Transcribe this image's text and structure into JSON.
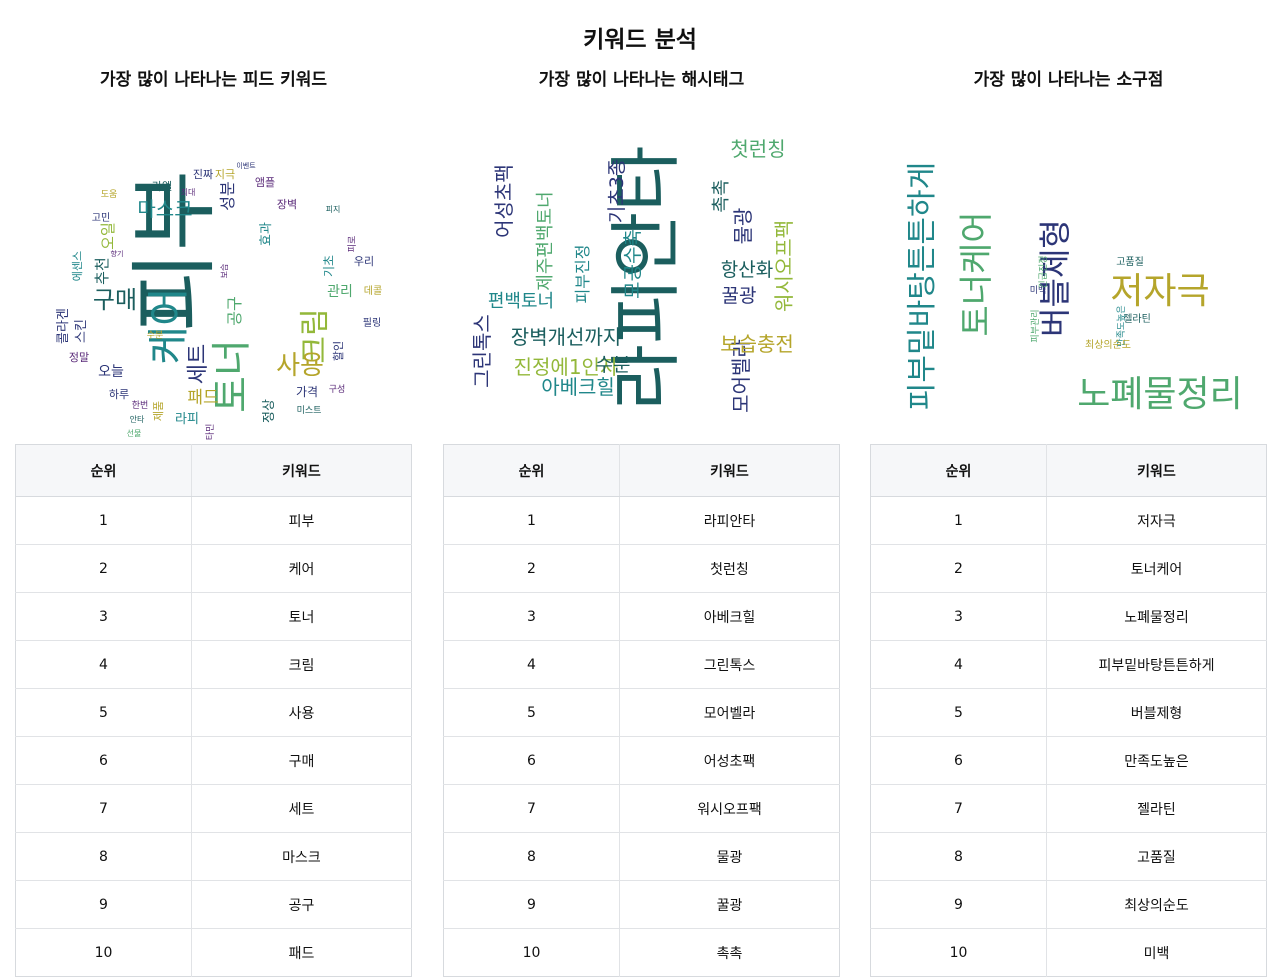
{
  "page_title": "키워드 분석",
  "columns": [
    {
      "title": "가장 많이 나타나는 피드 키워드",
      "rank_header": "순위",
      "keyword_header": "키워드",
      "rows": [
        {
          "rank": "1",
          "keyword": "피부"
        },
        {
          "rank": "2",
          "keyword": "케어"
        },
        {
          "rank": "3",
          "keyword": "토너"
        },
        {
          "rank": "4",
          "keyword": "크림"
        },
        {
          "rank": "5",
          "keyword": "사용"
        },
        {
          "rank": "6",
          "keyword": "구매"
        },
        {
          "rank": "7",
          "keyword": "세트"
        },
        {
          "rank": "8",
          "keyword": "마스크"
        },
        {
          "rank": "9",
          "keyword": "공구"
        },
        {
          "rank": "10",
          "keyword": "패드"
        }
      ]
    },
    {
      "title": "가장 많이 나타나는 해시태그",
      "rank_header": "순위",
      "keyword_header": "키워드",
      "rows": [
        {
          "rank": "1",
          "keyword": "라피안타"
        },
        {
          "rank": "2",
          "keyword": "첫런칭"
        },
        {
          "rank": "3",
          "keyword": "아베크힐"
        },
        {
          "rank": "4",
          "keyword": "그린톡스"
        },
        {
          "rank": "5",
          "keyword": "모어벨라"
        },
        {
          "rank": "6",
          "keyword": "어성초팩"
        },
        {
          "rank": "7",
          "keyword": "워시오프팩"
        },
        {
          "rank": "8",
          "keyword": "물광"
        },
        {
          "rank": "9",
          "keyword": "꿀광"
        },
        {
          "rank": "10",
          "keyword": "촉촉"
        }
      ]
    },
    {
      "title": "가장 많이 나타나는 소구점",
      "rank_header": "순위",
      "keyword_header": "키워드",
      "rows": [
        {
          "rank": "1",
          "keyword": "저자극"
        },
        {
          "rank": "2",
          "keyword": "토너케어"
        },
        {
          "rank": "3",
          "keyword": "노폐물정리"
        },
        {
          "rank": "4",
          "keyword": "피부밑바탕튼튼하게"
        },
        {
          "rank": "5",
          "keyword": "버블제형"
        },
        {
          "rank": "6",
          "keyword": "만족도높은"
        },
        {
          "rank": "7",
          "keyword": "젤라틴"
        },
        {
          "rank": "8",
          "keyword": "고품질"
        },
        {
          "rank": "9",
          "keyword": "최상의순도"
        },
        {
          "rank": "10",
          "keyword": "미백"
        }
      ]
    }
  ],
  "clouds": {
    "feed": [
      "피부",
      "케어",
      "토너",
      "크림",
      "사용",
      "구매",
      "세트",
      "마스크",
      "공구",
      "패드",
      "성분",
      "추천",
      "오일",
      "관리",
      "가격",
      "정상",
      "라피",
      "오늘",
      "스킨",
      "효과",
      "장벽",
      "제품",
      "앰플",
      "라엘",
      "진짜",
      "지극",
      "콜라겐",
      "정말",
      "기초",
      "할인",
      "구성",
      "미스트",
      "필링",
      "데콜",
      "우리",
      "최대",
      "이벤트",
      "도움",
      "고민",
      "에센스",
      "향기",
      "피로",
      "하루",
      "한번",
      "안타",
      "비타민",
      "피지",
      "선물",
      "보습",
      "수분"
    ],
    "hashtag": [
      "라피안타",
      "첫런칭",
      "아베크힐",
      "그린톡스",
      "모어벨라",
      "어성초팩",
      "워시오프팩",
      "물광",
      "꿀광",
      "촉촉",
      "항산화",
      "보습충전",
      "장벽개선까지",
      "진정에1인자",
      "편백토너",
      "모공수축",
      "기초3종",
      "제주편백토너",
      "피부진정",
      "수분"
    ],
    "appeal": [
      "저자극",
      "토너케어",
      "노폐물정리",
      "피부밑바탕튼튼하게",
      "버블제형",
      "만족도높은",
      "젤라틴",
      "고품질",
      "최상의순도",
      "미백",
      "피부관리",
      "긴급진정"
    ]
  },
  "colors": {
    "cloud_dark_teal": "#1b5e5e",
    "cloud_teal": "#20878a",
    "cloud_green": "#4fa86e",
    "cloud_olive": "#b5a52b",
    "cloud_navy": "#2c3577",
    "cloud_purple": "#5a2a79",
    "cloud_yellowgreen": "#93b83a",
    "table_header_bg": "#f6f7f9",
    "border": "#d7dade"
  }
}
